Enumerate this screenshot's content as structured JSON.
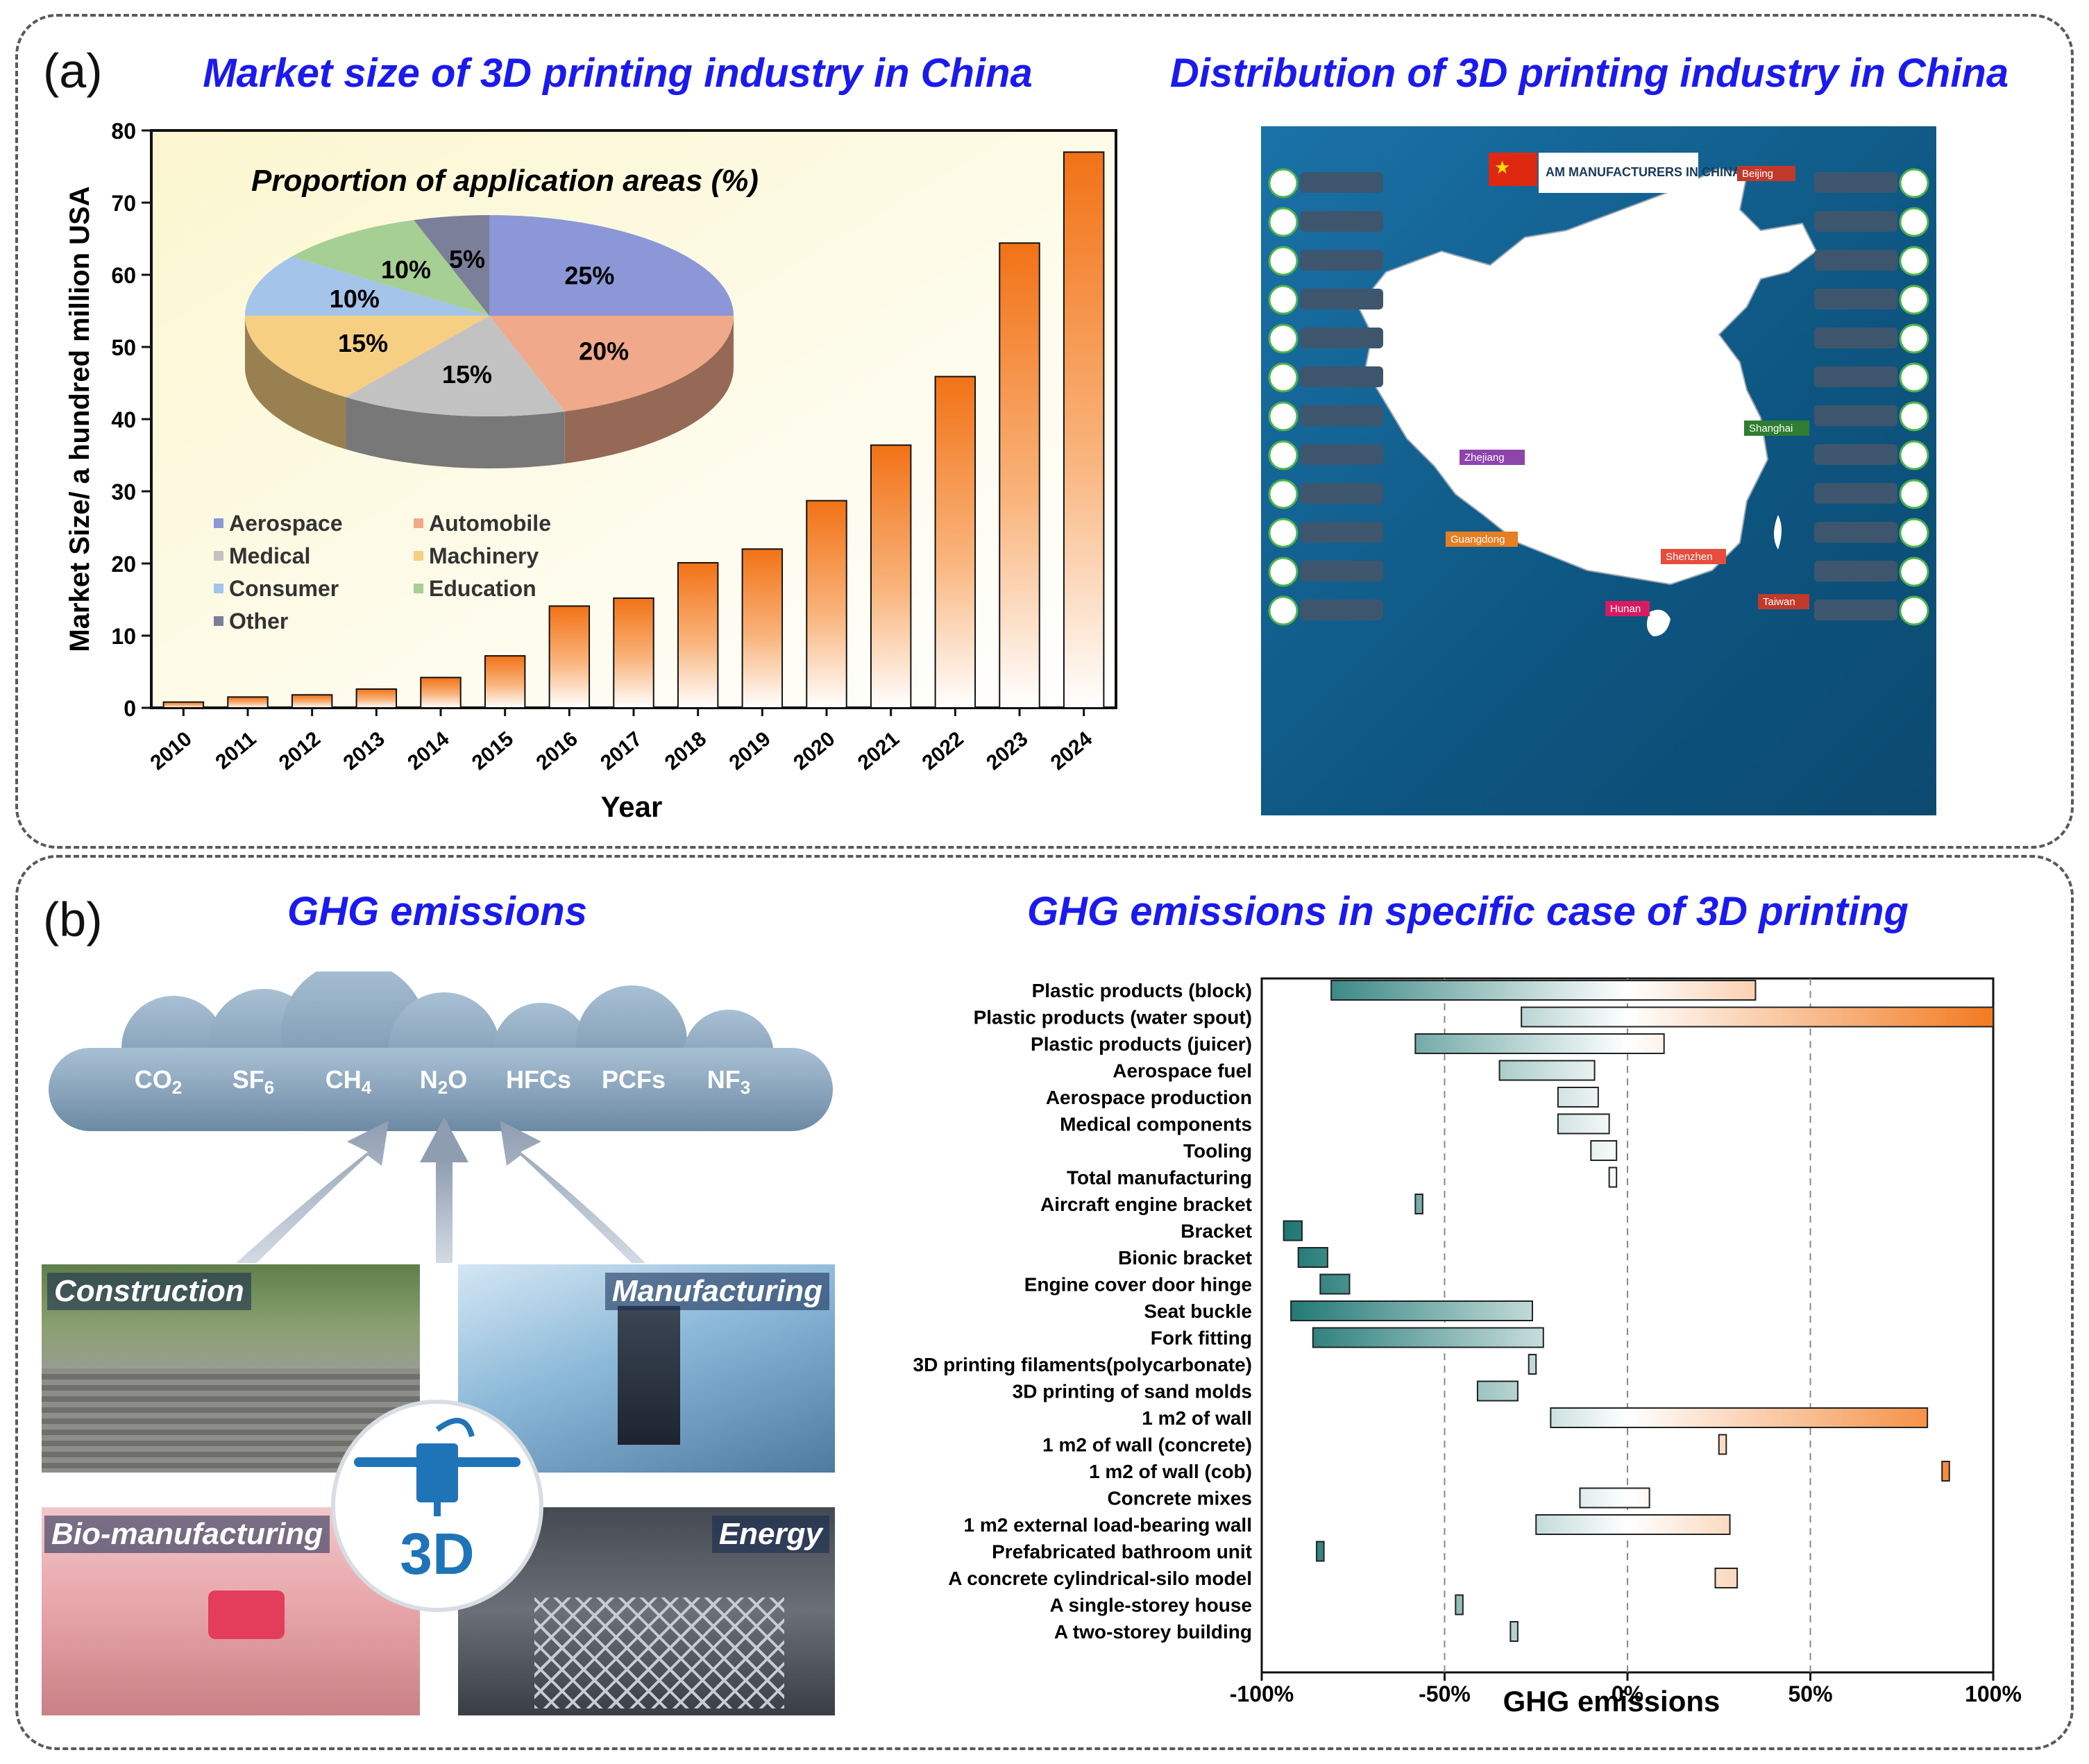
{
  "panel_a": {
    "label": "(a)",
    "left_title": "Market size of 3D printing industry in China",
    "right_title": "Distribution of 3D printing industry in China"
  },
  "panel_b": {
    "label": "(b)",
    "left_title": "GHG emissions",
    "right_title": "GHG emissions in specific case of 3D printing"
  },
  "colors": {
    "title_blue": "#1a1aee",
    "bar_orange": "#f47a20",
    "teal": "#1a7f7a",
    "map_blue": "#1368a0"
  },
  "chart_data": [
    {
      "type": "bar",
      "title": "",
      "xlabel": "Year",
      "ylabel": "Market Size/ a hundred million USA",
      "ylim": [
        0,
        80
      ],
      "yticks": [
        "0",
        "10",
        "20",
        "30",
        "40",
        "50",
        "60",
        "70",
        "80"
      ],
      "categories": [
        "2010",
        "2011",
        "2012",
        "2013",
        "2014",
        "2015",
        "2016",
        "2017",
        "2018",
        "2019",
        "2020",
        "2021",
        "2022",
        "2023",
        "2024"
      ],
      "values": [
        0.8,
        1.5,
        1.8,
        2.6,
        4.2,
        7.2,
        14.1,
        15.2,
        20.1,
        22.0,
        28.7,
        36.4,
        45.9,
        64.4,
        77.0
      ]
    },
    {
      "type": "pie",
      "title": "Proportion of application areas (%)",
      "categories": [
        "Aerospace",
        "Automobile",
        "Medical",
        "Machinery",
        "Consumer",
        "Education",
        "Other"
      ],
      "values": [
        25,
        20,
        15,
        15,
        10,
        10,
        5
      ],
      "labels": [
        "25%",
        "20%",
        "15%",
        "15%",
        "10%",
        "10%",
        "5%"
      ],
      "colors": [
        "#8b97d6",
        "#f0a98a",
        "#c2c2c2",
        "#f7cf82",
        "#a4c4ea",
        "#a6cf94",
        "#7b7f9a"
      ],
      "legend": "bottom-left"
    },
    {
      "type": "bar",
      "orientation": "horizontal",
      "title": "",
      "xlabel": "GHG emissions",
      "xlim": [
        -100,
        100
      ],
      "xticks": [
        "-100%",
        "-50%",
        "0%",
        "50%",
        "100%"
      ],
      "categories": [
        "Plastic products (block)",
        "Plastic products (water spout)",
        "Plastic products (juicer)",
        "Aerospace fuel",
        "Aerospace production",
        "Medical components",
        "Tooling",
        "Total manufacturing",
        "Aircraft engine bracket",
        "Bracket",
        "Bionic bracket",
        "Engine cover door hinge",
        "Seat buckle",
        "Fork fitting",
        "3D printing filaments(polycarbonate)",
        "3D printing of sand molds",
        "1 m2 of wall",
        "1 m2 of wall (concrete)",
        "1 m2 of wall (cob)",
        "Concrete mixes",
        "1 m2 external load-bearing wall",
        "Prefabricated bathroom unit",
        "A concrete cylindrical-silo model",
        "A single-storey house",
        "A two-storey building"
      ],
      "ranges": [
        [
          -81,
          35
        ],
        [
          -29,
          100
        ],
        [
          -58,
          10
        ],
        [
          -35,
          -9
        ],
        [
          -19,
          -8
        ],
        [
          -19,
          -5
        ],
        [
          -10,
          -3
        ],
        [
          -5,
          -3
        ],
        [
          -58,
          -56
        ],
        [
          -94,
          -89
        ],
        [
          -90,
          -82
        ],
        [
          -84,
          -76
        ],
        [
          -92,
          -26
        ],
        [
          -86,
          -23
        ],
        [
          -27,
          -25
        ],
        [
          -41,
          -30
        ],
        [
          -21,
          82
        ],
        [
          25,
          27
        ],
        [
          86,
          88
        ],
        [
          -13,
          6
        ],
        [
          -25,
          28
        ],
        [
          -85,
          -83
        ],
        [
          24,
          30
        ],
        [
          -47,
          -45
        ],
        [
          -32,
          -30
        ]
      ]
    }
  ],
  "pie_legend": [
    "Aerospace",
    "Automobile",
    "Medical",
    "Machinery",
    "Consumer",
    "Education",
    "Other"
  ],
  "ghg_gases": [
    "CO2",
    "SF6",
    "CH4",
    "N2O",
    "HFCs",
    "PCFs",
    "NF3"
  ],
  "applications": {
    "construction": "Construction",
    "manufacturing": "Manufacturing",
    "bio": "Bio-manufacturing",
    "energy": "Energy",
    "center_logo": "3D"
  },
  "map": {
    "banner": "AM MANUFACTURERS IN CHINA",
    "regions": [
      "Beijing",
      "Shanghai",
      "Zhejiang",
      "Guangdong",
      "Shenzhen",
      "Hunan",
      "Taiwan"
    ]
  }
}
